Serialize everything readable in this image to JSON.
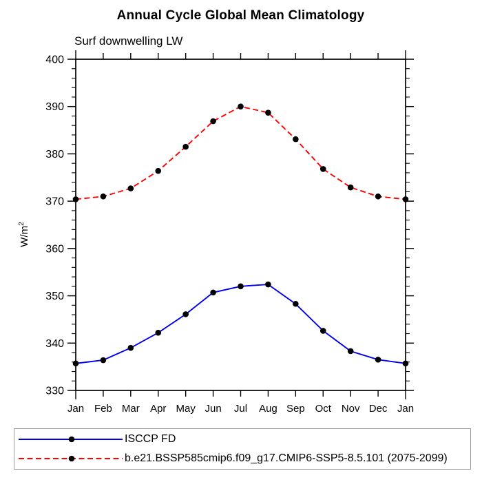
{
  "page": {
    "background": "#ffffff"
  },
  "chart_data": {
    "type": "line",
    "title": "Annual Cycle Global Mean Climatology",
    "subtitle": "Surf downwelling LW",
    "ylabel": {
      "base": "W/m",
      "exponent": "2"
    },
    "categories": [
      "Jan",
      "Feb",
      "Mar",
      "Apr",
      "May",
      "Jun",
      "Jul",
      "Aug",
      "Sep",
      "Oct",
      "Nov",
      "Dec",
      "Jan"
    ],
    "ylim": [
      330,
      400
    ],
    "y_major_step": 10,
    "y_minor_step": 2,
    "y_tick_labels": [
      "330",
      "340",
      "350",
      "360",
      "370",
      "380",
      "390",
      "400"
    ],
    "grid": false,
    "legend_position": "bottom-left-box",
    "axis_color": "#000000",
    "marker_color": "#000000",
    "series": [
      {
        "name": "ISCCP FD",
        "color": "#0000ee",
        "line_style": "solid",
        "marker": "filled-circle",
        "values": [
          335.7,
          336.4,
          339.0,
          342.2,
          346.1,
          350.7,
          352.0,
          352.4,
          348.3,
          342.6,
          338.3,
          336.5,
          335.7
        ]
      },
      {
        "name": "b.e21.BSSP585cmip6.f09_g17.CMIP6-SSP5-8.5.101 (2075-2099)",
        "color": "#ff0000",
        "line_style": "dashed",
        "marker": "filled-circle",
        "values": [
          370.4,
          371.0,
          372.7,
          376.4,
          381.5,
          386.9,
          390.0,
          388.7,
          383.1,
          376.8,
          372.9,
          371.0,
          370.4
        ]
      }
    ]
  }
}
